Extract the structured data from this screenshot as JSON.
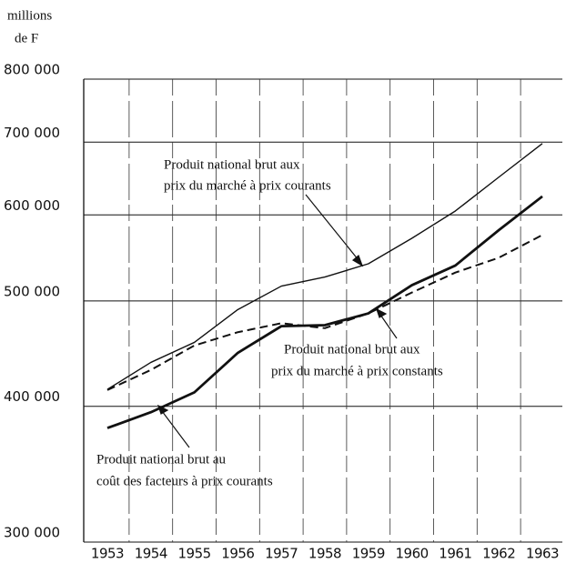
{
  "chart_data": {
    "type": "line",
    "ylabel": [
      "millions",
      "de F"
    ],
    "categories": [
      "1953",
      "1954",
      "1955",
      "1956",
      "1957",
      "1958",
      "1959",
      "1960",
      "1961",
      "1962",
      "1963"
    ],
    "log_scale": true,
    "grid": true,
    "ylim": [
      300000,
      800000
    ],
    "yticks": [
      {
        "value": 300000,
        "label": "300 000"
      },
      {
        "value": 400000,
        "label": "400 000"
      },
      {
        "value": 500000,
        "label": "500 000"
      },
      {
        "value": 600000,
        "label": "600 000"
      },
      {
        "value": 700000,
        "label": "700 000"
      },
      {
        "value": 800000,
        "label": "800 000"
      }
    ],
    "series": [
      {
        "name": "Produit national brut aux prix du marché à prix courants",
        "color": "#111111",
        "style": "thin",
        "values": [
          414600,
          439000,
          458000,
          491000,
          516000,
          526000,
          541000,
          571000,
          605000,
          650000,
          698000
        ]
      },
      {
        "name": "Produit national brut aux prix du marché à prix constants",
        "color": "#111111",
        "style": "dashed",
        "values": [
          414000,
          432000,
          455000,
          468000,
          477000,
          472000,
          487000,
          509000,
          531000,
          548000,
          575000
        ]
      },
      {
        "name": "Produit national brut au coût des facteurs à prix courants",
        "color": "#111111",
        "style": "thick",
        "values": [
          382000,
          395000,
          412000,
          448000,
          474000,
          475000,
          487000,
          517000,
          539000,
          581000,
          624000
        ]
      }
    ],
    "annotations": [
      {
        "lines": [
          "Produit national brut aux",
          "prix du marché à prix courants"
        ]
      },
      {
        "lines": [
          "Produit national brut aux",
          "prix du marché à prix constants"
        ]
      },
      {
        "lines": [
          "Produit national brut au",
          "coût des facteurs à prix courants"
        ]
      }
    ]
  }
}
